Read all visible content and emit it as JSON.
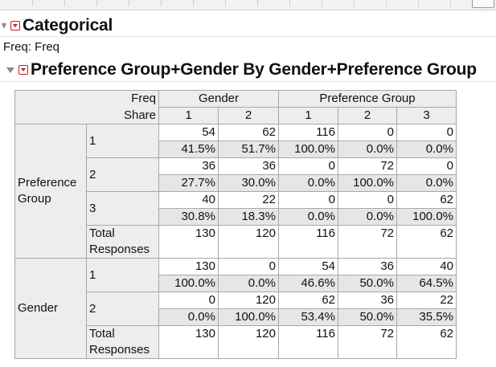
{
  "section": {
    "title": "Categorical",
    "freq_label": "Freq: Freq"
  },
  "report": {
    "title": "Preference Group+Gender By Gender+Preference Group"
  },
  "table": {
    "corner_top": "Freq",
    "corner_bottom": "Share",
    "col_groups": [
      "Gender",
      "Preference Group"
    ],
    "col_headers": [
      "1",
      "2",
      "1",
      "2",
      "3"
    ],
    "row_groups": [
      {
        "label": "Preference Group",
        "rows": [
          {
            "label": "1",
            "counts": [
              "54",
              "62",
              "116",
              "0",
              "0"
            ],
            "shares": [
              "41.5%",
              "51.7%",
              "100.0%",
              "0.0%",
              "0.0%"
            ]
          },
          {
            "label": "2",
            "counts": [
              "36",
              "36",
              "0",
              "72",
              "0"
            ],
            "shares": [
              "27.7%",
              "30.0%",
              "0.0%",
              "100.0%",
              "0.0%"
            ]
          },
          {
            "label": "3",
            "counts": [
              "40",
              "22",
              "0",
              "0",
              "62"
            ],
            "shares": [
              "30.8%",
              "18.3%",
              "0.0%",
              "0.0%",
              "100.0%"
            ]
          }
        ],
        "total": {
          "label": "Total Responses",
          "values": [
            "130",
            "120",
            "116",
            "72",
            "62"
          ]
        }
      },
      {
        "label": "Gender",
        "rows": [
          {
            "label": "1",
            "counts": [
              "130",
              "0",
              "54",
              "36",
              "40"
            ],
            "shares": [
              "100.0%",
              "0.0%",
              "46.6%",
              "50.0%",
              "64.5%"
            ]
          },
          {
            "label": "2",
            "counts": [
              "0",
              "120",
              "62",
              "36",
              "22"
            ],
            "shares": [
              "0.0%",
              "100.0%",
              "53.4%",
              "50.0%",
              "35.5%"
            ]
          }
        ],
        "total": {
          "label": "Total Responses",
          "values": [
            "130",
            "120",
            "116",
            "72",
            "62"
          ]
        }
      }
    ]
  }
}
